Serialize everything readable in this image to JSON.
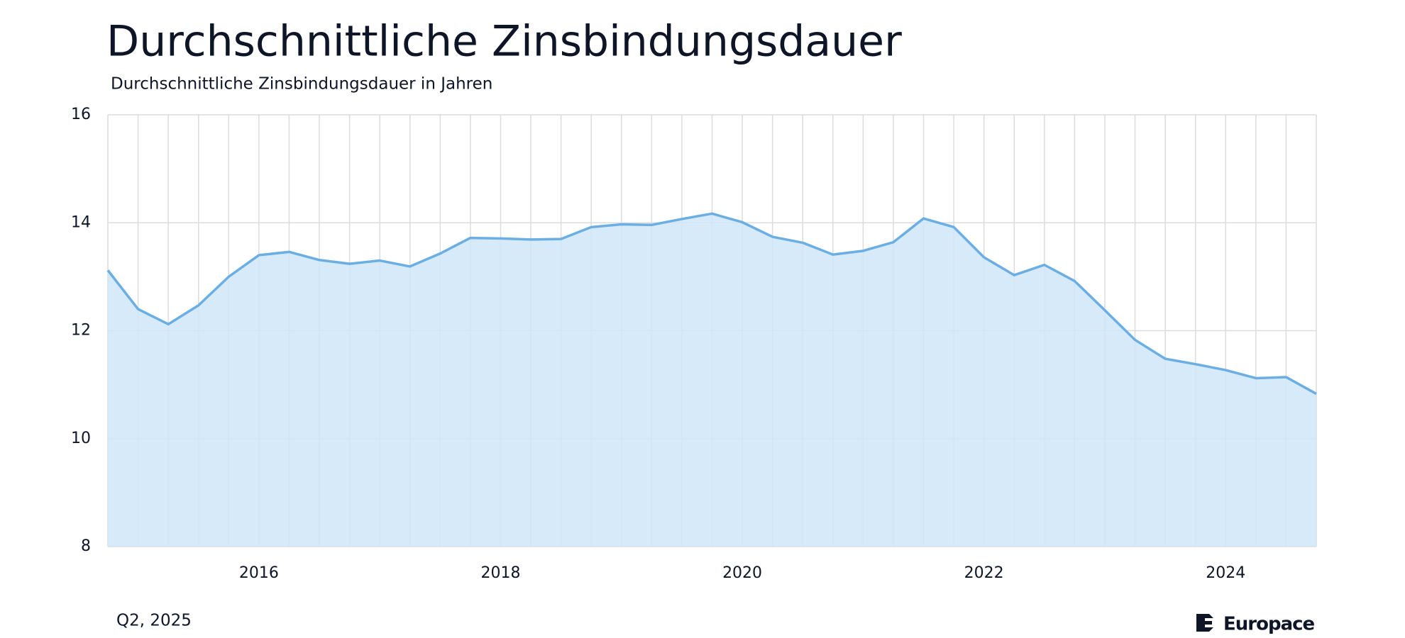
{
  "chart_data": {
    "type": "area",
    "title": "Durchschnittliche Zinsbindungsdauer",
    "subtitle": "Durchschnittliche Zinsbindungsdauer in Jahren",
    "footnote": "Q2, 2025",
    "brand": "Europace",
    "x": [
      2014.75,
      2015,
      2015.25,
      2015.5,
      2015.75,
      2016,
      2016.25,
      2016.5,
      2016.75,
      2017,
      2017.25,
      2017.5,
      2017.75,
      2018,
      2018.25,
      2018.5,
      2018.75,
      2019,
      2019.25,
      2019.5,
      2019.75,
      2020,
      2020.25,
      2020.5,
      2020.75,
      2021,
      2021.25,
      2021.5,
      2021.75,
      2022,
      2022.25,
      2022.5,
      2022.75,
      2023,
      2023.25,
      2023.5,
      2023.75,
      2024,
      2024.25,
      2024.5,
      2024.75
    ],
    "values": [
      13.12,
      12.4,
      12.12,
      12.47,
      13.0,
      13.4,
      13.46,
      13.31,
      13.24,
      13.3,
      13.19,
      13.43,
      13.72,
      13.71,
      13.69,
      13.7,
      13.92,
      13.97,
      13.96,
      14.07,
      14.17,
      14.01,
      13.74,
      13.63,
      13.41,
      13.48,
      13.64,
      14.08,
      13.92,
      13.36,
      13.03,
      13.22,
      12.92,
      12.38,
      11.83,
      11.48,
      11.38,
      11.27,
      11.12,
      11.14,
      10.83
    ],
    "xlim": [
      2014.75,
      2024.75
    ],
    "xticks": [
      2016,
      2018,
      2020,
      2022,
      2024
    ],
    "ylim": [
      8,
      16
    ],
    "yticks": [
      8,
      10,
      12,
      14,
      16
    ],
    "color": "#6aaee3",
    "fill": "#cfe6f9",
    "grid": true
  }
}
